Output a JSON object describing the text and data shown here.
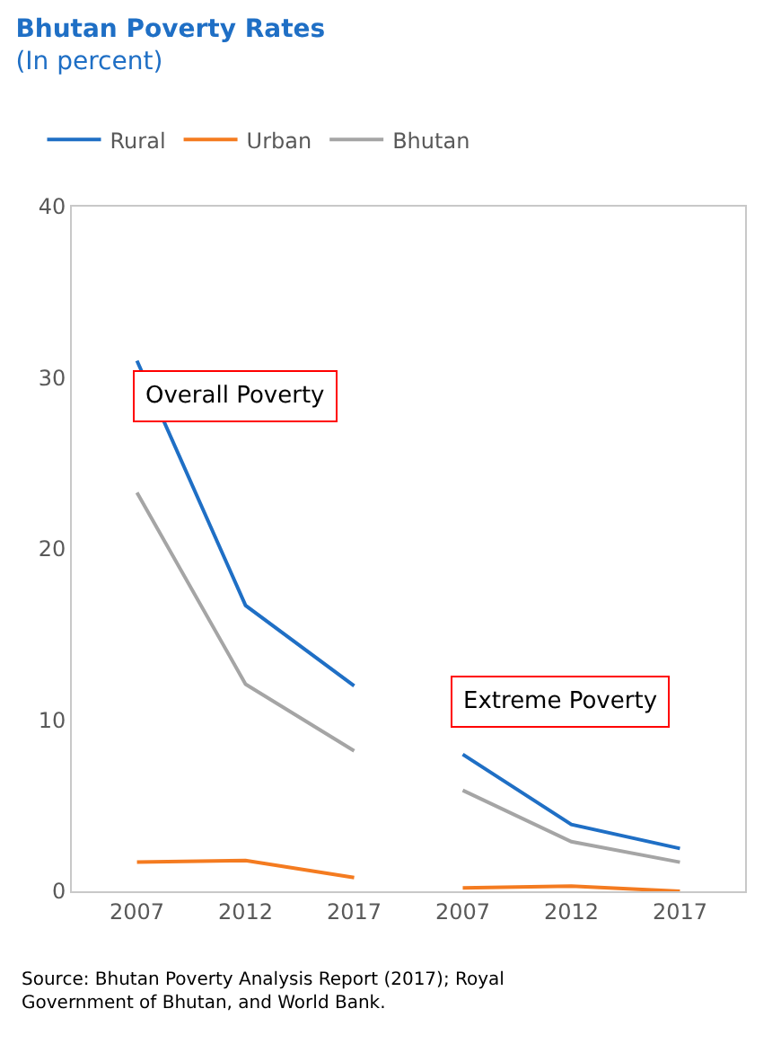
{
  "chart_data": {
    "type": "line",
    "title": "Bhutan Poverty Rates",
    "subtitle": "(In percent)",
    "categories": [
      "2007",
      "2012",
      "2017",
      "2007",
      "2012",
      "2017"
    ],
    "series": [
      {
        "name": "Rural",
        "color": "#1f6fc5",
        "values": [
          31.0,
          16.7,
          12.0,
          null,
          null,
          null
        ]
      },
      {
        "name": "Urban",
        "color": "#f47b20",
        "values": [
          1.7,
          1.8,
          0.8,
          null,
          null,
          null
        ]
      },
      {
        "name": "Bhutan",
        "color": "#a5a5a5",
        "values": [
          23.3,
          12.1,
          8.2,
          null,
          null,
          null
        ]
      },
      {
        "color": "#1f6fc5",
        "values": [
          null,
          null,
          null,
          8.0,
          3.9,
          2.5
        ]
      },
      {
        "color": "#f47b20",
        "values": [
          null,
          null,
          null,
          0.2,
          0.3,
          0.0
        ]
      },
      {
        "color": "#a5a5a5",
        "values": [
          null,
          null,
          null,
          5.9,
          2.9,
          1.7
        ]
      }
    ],
    "ylim": [
      0,
      40
    ],
    "yticks": [
      0,
      10,
      20,
      30,
      40
    ],
    "legend": "top left",
    "marker": "none",
    "line_style": "solid",
    "annotations": [
      "Overall Poverty",
      "Extreme Poverty",
      "Source: Bhutan Poverty Analysis Report (2017); Royal Government of Bhutan, and World Bank."
    ]
  }
}
